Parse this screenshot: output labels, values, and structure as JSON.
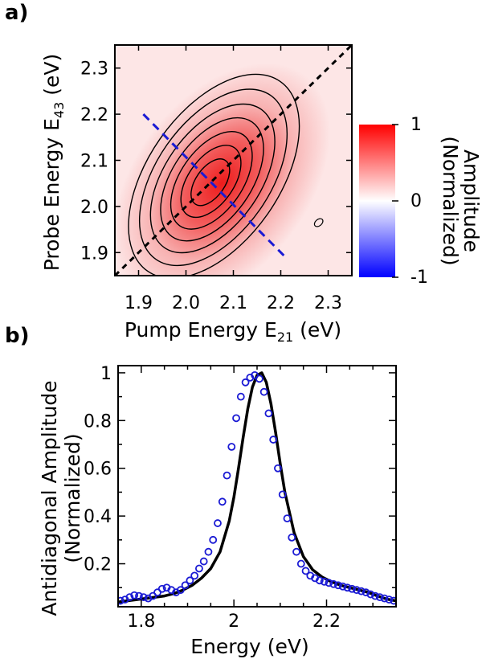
{
  "chart_data": [
    {
      "panel": "a)",
      "type": "heatmap",
      "xlabel": "Pump Energy E",
      "xlabel_sub": "21",
      "xlabel_unit": " (eV)",
      "ylabel": "Probe Energy E",
      "ylabel_sub": "43",
      "ylabel_unit": " (eV)",
      "xlim": [
        1.85,
        2.35
      ],
      "ylim": [
        1.85,
        2.35
      ],
      "xticks": [
        1.9,
        2.0,
        2.1,
        2.2,
        2.3
      ],
      "xtick_labels": [
        "1.9",
        "2.0",
        "2.1",
        "2.2",
        "2.3"
      ],
      "yticks": [
        1.9,
        2.0,
        2.1,
        2.2,
        2.3
      ],
      "ytick_labels": [
        "1.9",
        "2.0",
        "2.1",
        "2.2",
        "2.3"
      ],
      "peak": {
        "x": 2.05,
        "y": 2.05
      },
      "contour_levels": [
        0.12,
        0.25,
        0.38,
        0.5,
        0.62,
        0.74,
        0.86
      ],
      "diagonal": {
        "from": [
          1.85,
          1.85
        ],
        "to": [
          2.35,
          2.35
        ],
        "color": "#000000",
        "style": "dashed"
      },
      "antidiagonal": {
        "from": [
          1.91,
          2.2
        ],
        "to": [
          2.21,
          1.89
        ],
        "color": "#1a1ad4",
        "style": "dashed"
      },
      "colorbar": {
        "title": "Amplitude",
        "subtitle": "(Normalized)",
        "ticks": [
          1,
          0,
          -1
        ],
        "tick_labels": [
          "1",
          "0",
          "-1"
        ],
        "colors": {
          "max": "#ff0000",
          "mid": "#ffffff",
          "min": "#0000ff"
        }
      }
    },
    {
      "panel": "b)",
      "type": "scatter",
      "xlabel": "Energy (eV)",
      "ylabel": "Antidiagonal Amplitude",
      "ylabel2": "(Normalized)",
      "xlim": [
        1.75,
        2.35
      ],
      "ylim": [
        0.02,
        1.03
      ],
      "xticks": [
        1.8,
        2.0,
        2.2
      ],
      "xtick_labels": [
        "1.8",
        "2",
        "2.2"
      ],
      "yticks": [
        0.2,
        0.4,
        0.6,
        0.8,
        1.0
      ],
      "ytick_labels": [
        "0.2",
        "0.4",
        "0.6",
        "0.8",
        "1"
      ],
      "series": [
        {
          "kind": "markers",
          "color": "#1a1ad4",
          "x": [
            1.755,
            1.765,
            1.775,
            1.785,
            1.795,
            1.805,
            1.815,
            1.825,
            1.835,
            1.845,
            1.855,
            1.865,
            1.875,
            1.885,
            1.895,
            1.905,
            1.915,
            1.925,
            1.935,
            1.945,
            1.955,
            1.965,
            1.975,
            1.985,
            1.995,
            2.005,
            2.015,
            2.025,
            2.035,
            2.045,
            2.055,
            2.065,
            2.075,
            2.085,
            2.095,
            2.105,
            2.115,
            2.125,
            2.135,
            2.145,
            2.155,
            2.165,
            2.175,
            2.185,
            2.195,
            2.205,
            2.215,
            2.225,
            2.235,
            2.245,
            2.255,
            2.265,
            2.275,
            2.285,
            2.295,
            2.305,
            2.315,
            2.325,
            2.335,
            2.345
          ],
          "y": [
            0.045,
            0.05,
            0.06,
            0.068,
            0.065,
            0.06,
            0.055,
            0.065,
            0.08,
            0.095,
            0.1,
            0.09,
            0.08,
            0.09,
            0.11,
            0.13,
            0.15,
            0.18,
            0.21,
            0.25,
            0.3,
            0.37,
            0.46,
            0.57,
            0.69,
            0.81,
            0.9,
            0.96,
            0.98,
            0.99,
            0.975,
            0.92,
            0.83,
            0.72,
            0.6,
            0.49,
            0.39,
            0.31,
            0.25,
            0.2,
            0.17,
            0.15,
            0.14,
            0.13,
            0.125,
            0.12,
            0.115,
            0.11,
            0.105,
            0.1,
            0.095,
            0.09,
            0.085,
            0.08,
            0.072,
            0.065,
            0.06,
            0.055,
            0.05,
            0.045
          ]
        },
        {
          "kind": "line",
          "color": "#000000",
          "x": [
            1.75,
            1.77,
            1.79,
            1.81,
            1.83,
            1.85,
            1.87,
            1.89,
            1.91,
            1.93,
            1.95,
            1.97,
            1.99,
            2.0,
            2.01,
            2.02,
            2.03,
            2.04,
            2.05,
            2.06,
            2.07,
            2.08,
            2.09,
            2.1,
            2.11,
            2.13,
            2.15,
            2.17,
            2.19,
            2.21,
            2.23,
            2.25,
            2.27,
            2.29,
            2.31,
            2.33,
            2.35
          ],
          "y": [
            0.04,
            0.045,
            0.05,
            0.055,
            0.06,
            0.065,
            0.075,
            0.09,
            0.11,
            0.14,
            0.18,
            0.25,
            0.38,
            0.48,
            0.6,
            0.73,
            0.85,
            0.94,
            0.99,
            1.0,
            0.96,
            0.87,
            0.75,
            0.62,
            0.5,
            0.33,
            0.23,
            0.175,
            0.145,
            0.125,
            0.11,
            0.1,
            0.09,
            0.08,
            0.065,
            0.052,
            0.045
          ]
        }
      ]
    }
  ]
}
